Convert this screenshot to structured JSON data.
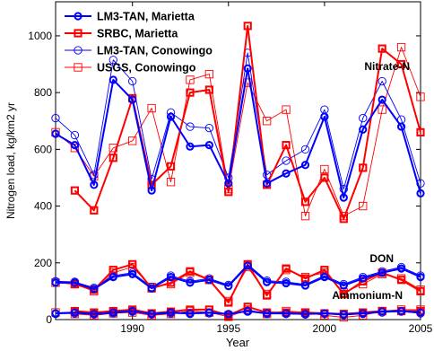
{
  "chart_data": {
    "type": "line",
    "xlabel": "Year",
    "ylabel": "Nitrogen load, kg/km2 yr",
    "xlim": [
      1986,
      2005
    ],
    "ylim": [
      0,
      1120
    ],
    "xticks": [
      1990,
      1995,
      2000,
      2005
    ],
    "yticks": [
      0,
      200,
      400,
      600,
      800,
      1000
    ],
    "grid": false,
    "legend_position": "top-left",
    "annotations": [
      "Nitrate-N",
      "DON",
      "Ammonium-N"
    ],
    "colors": {
      "LM3-TAN, Marietta": "#0000ff",
      "SRBC, Marietta": "#ff0000",
      "LM3-TAN, Conowingo": "#0000ff",
      "USGS, Conowingo": "#ff0000"
    },
    "legend": [
      {
        "name": "LM3-TAN, Marietta",
        "style": "solid-circle"
      },
      {
        "name": "SRBC, Marietta",
        "style": "solid-square"
      },
      {
        "name": "LM3-TAN, Conowingo",
        "style": "thin-circle"
      },
      {
        "name": "USGS, Conowingo",
        "style": "thin-square"
      }
    ],
    "groups": [
      {
        "name": "Nitrate-N",
        "series": [
          {
            "name": "LM3-TAN, Marietta",
            "x": [
              1986,
              1987,
              1988,
              1989,
              1990,
              1991,
              1992,
              1993,
              1994,
              1995,
              1996,
              1997,
              1998,
              1999,
              2000,
              2001,
              2002,
              2003,
              2004,
              2005
            ],
            "y": [
              655,
              615,
              475,
              845,
              775,
              455,
              715,
              610,
              615,
              480,
              885,
              480,
              515,
              545,
              715,
              430,
              670,
              775,
              680,
              445
            ]
          },
          {
            "name": "SRBC, Marietta",
            "x": [
              1987,
              1988,
              1989,
              1990,
              1991,
              1992,
              1993,
              1994,
              1995,
              1996,
              1997,
              1998,
              1999,
              2000,
              2001,
              2002,
              2003,
              2004,
              2005
            ],
            "y": [
              455,
              385,
              570,
              780,
              475,
              540,
              800,
              810,
              450,
              1035,
              475,
              615,
              415,
              500,
              355,
              535,
              955,
              900,
              660
            ]
          },
          {
            "name": "LM3-TAN, Conowingo",
            "x": [
              1986,
              1987,
              1988,
              1989,
              1990,
              1991,
              1992,
              1993,
              1994,
              1995,
              1996,
              1997,
              1998,
              1999,
              2000,
              2001,
              2002,
              2003,
              2004,
              2005
            ],
            "y": [
              710,
              650,
              510,
              915,
              840,
              495,
              730,
              680,
              675,
              500,
              940,
              510,
              560,
              600,
              740,
              460,
              710,
              840,
              705,
              480
            ]
          },
          {
            "name": "USGS, Conowingo",
            "x": [
              1986,
              1987,
              1988,
              1989,
              1990,
              1991,
              1992,
              1993,
              1994,
              1995,
              1996,
              1997,
              1998,
              1999,
              2000,
              2001,
              2002,
              2003,
              2004,
              2005
            ],
            "y": [
              660,
              605,
              505,
              605,
              630,
              745,
              485,
              845,
              865,
              460,
              835,
              700,
              740,
              365,
              530,
              365,
              400,
              740,
              960,
              785
            ]
          }
        ]
      },
      {
        "name": "DON",
        "series": [
          {
            "name": "LM3-TAN, Marietta",
            "x": [
              1986,
              1987,
              1988,
              1989,
              1990,
              1991,
              1992,
              1993,
              1994,
              1995,
              1996,
              1997,
              1998,
              1999,
              2000,
              2001,
              2002,
              2003,
              2004,
              2005
            ],
            "y": [
              130,
              130,
              108,
              150,
              160,
              110,
              150,
              130,
              140,
              118,
              190,
              132,
              128,
              120,
              150,
              120,
              145,
              165,
              180,
              150
            ]
          },
          {
            "name": "SRBC, Marietta",
            "x": [
              1987,
              1988,
              1989,
              1990,
              1991,
              1992,
              1993,
              1994,
              1995,
              1996,
              1997,
              1998,
              1999,
              2000,
              2001,
              2002,
              2003,
              2004,
              2005
            ],
            "y": [
              125,
              105,
              175,
              195,
              110,
              130,
              170,
              140,
              60,
              195,
              85,
              180,
              145,
              175,
              90,
              135,
              165,
              140,
              100
            ]
          },
          {
            "name": "LM3-TAN, Conowingo",
            "x": [
              1986,
              1987,
              1988,
              1989,
              1990,
              1991,
              1992,
              1993,
              1994,
              1995,
              1996,
              1997,
              1998,
              1999,
              2000,
              2001,
              2002,
              2003,
              2004,
              2005
            ],
            "y": [
              135,
              133,
              112,
              155,
              165,
              115,
              155,
              135,
              145,
              122,
              195,
              137,
              133,
              124,
              155,
              125,
              150,
              170,
              185,
              155
            ]
          },
          {
            "name": "USGS, Conowingo",
            "x": [
              1986,
              1987,
              1988,
              1989,
              1990,
              1991,
              1992,
              1993,
              1994,
              1995,
              1996,
              1997,
              1998,
              1999,
              2000,
              2001,
              2002,
              2003,
              2004,
              2005
            ],
            "y": [
              130,
              125,
              100,
              165,
              185,
              115,
              125,
              165,
              140,
              65,
              185,
              90,
              175,
              150,
              165,
              95,
              125,
              160,
              145,
              105
            ]
          }
        ]
      },
      {
        "name": "Ammonium-N",
        "series": [
          {
            "name": "LM3-TAN, Marietta",
            "x": [
              1986,
              1987,
              1988,
              1989,
              1990,
              1991,
              1992,
              1993,
              1994,
              1995,
              1996,
              1997,
              1998,
              1999,
              2000,
              2001,
              2002,
              2003,
              2004,
              2005
            ],
            "y": [
              22,
              25,
              20,
              25,
              30,
              20,
              25,
              22,
              25,
              20,
              30,
              22,
              22,
              20,
              22,
              18,
              22,
              28,
              30,
              25
            ]
          },
          {
            "name": "SRBC, Marietta",
            "x": [
              1987,
              1988,
              1989,
              1990,
              1991,
              1992,
              1993,
              1994,
              1995,
              1996,
              1997,
              1998,
              1999,
              2000,
              2001,
              2002,
              2003,
              2004,
              2005
            ],
            "y": [
              30,
              25,
              30,
              35,
              22,
              28,
              35,
              35,
              15,
              45,
              25,
              25,
              25,
              22,
              20,
              25,
              30,
              30,
              30
            ]
          },
          {
            "name": "LM3-TAN, Conowingo",
            "x": [
              1986,
              1987,
              1988,
              1989,
              1990,
              1991,
              1992,
              1993,
              1994,
              1995,
              1996,
              1997,
              1998,
              1999,
              2000,
              2001,
              2002,
              2003,
              2004,
              2005
            ],
            "y": [
              20,
              22,
              18,
              22,
              28,
              18,
              22,
              20,
              22,
              18,
              28,
              20,
              20,
              18,
              20,
              16,
              20,
              25,
              28,
              22
            ]
          },
          {
            "name": "USGS, Conowingo",
            "x": [
              1986,
              1987,
              1988,
              1989,
              1990,
              1991,
              1992,
              1993,
              1994,
              1995,
              1996,
              1997,
              1998,
              1999,
              2000,
              2001,
              2002,
              2003,
              2004,
              2005
            ],
            "y": [
              25,
              20,
              15,
              22,
              25,
              15,
              20,
              30,
              25,
              10,
              35,
              20,
              30,
              25,
              15,
              8,
              15,
              30,
              35,
              35
            ]
          }
        ]
      }
    ]
  }
}
